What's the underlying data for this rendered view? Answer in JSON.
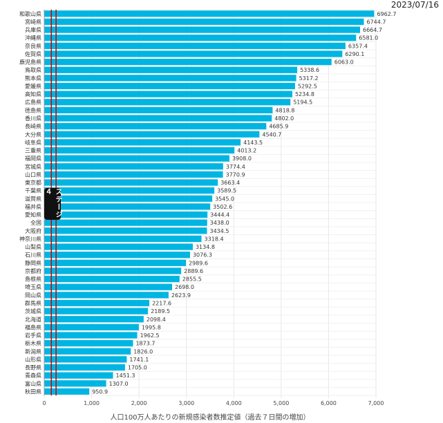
{
  "date": "2023/07/16",
  "chart_data": {
    "type": "bar",
    "orientation": "horizontal",
    "categories": [
      "和歌山県",
      "宮崎県",
      "兵庫県",
      "沖縄県",
      "奈良県",
      "佐賀県",
      "鹿児島県",
      "鳥取県",
      "熊本県",
      "愛媛県",
      "高知県",
      "広島県",
      "徳島県",
      "香川県",
      "長崎県",
      "大分県",
      "岐阜県",
      "三重県",
      "福岡県",
      "宮城県",
      "山口県",
      "東京都",
      "千葉県",
      "滋賀県",
      "福井県",
      "愛知県",
      "全国",
      "大阪府",
      "神奈川県",
      "山梨県",
      "石川県",
      "静岡県",
      "京都府",
      "島根県",
      "埼玉県",
      "岡山県",
      "群馬県",
      "茨城県",
      "北海道",
      "福島県",
      "岩手県",
      "栃木県",
      "新潟県",
      "山形県",
      "長野県",
      "青森県",
      "富山県",
      "秋田県"
    ],
    "values": [
      6962.7,
      6744.7,
      6664.7,
      6581.0,
      6357.4,
      6290.1,
      6063.0,
      5338.6,
      5317.2,
      5292.5,
      5234.8,
      5194.5,
      4818.8,
      4802.0,
      4685.9,
      4540.7,
      4143.5,
      4013.2,
      3908.0,
      3774.4,
      3770.9,
      3663.4,
      3589.5,
      3545.0,
      3502.6,
      3444.4,
      3438.0,
      3434.5,
      3318.4,
      3134.8,
      3076.3,
      2989.6,
      2889.6,
      2855.5,
      2698.0,
      2623.9,
      2217.6,
      2189.5,
      2098.4,
      1995.8,
      1962.5,
      1873.7,
      1826.0,
      1741.1,
      1705.0,
      1451.3,
      1307.0,
      950.9
    ],
    "value_labels": [
      "6962.7",
      "6744.7",
      "6664.7",
      "6581.0",
      "6357.4",
      "6290.1",
      "6063.0",
      "5338.6",
      "5317.2",
      "5292.5",
      "5234.8",
      "5194.5",
      "4818.8",
      "4802.0",
      "4685.9",
      "4540.7",
      "4143.5",
      "4013.2",
      "3908.0",
      "3774.4",
      "3770.9",
      "3663.4",
      "3589.5",
      "3545.0",
      "3502.6",
      "3444.4",
      "3438.0",
      "3434.5",
      "3318.4",
      "3134.8",
      "3076.3",
      "2989.6",
      "2889.6",
      "2855.5",
      "2698.0",
      "2623.9",
      "2217.6",
      "2189.5",
      "2098.4",
      "1995.8",
      "1962.5",
      "1873.7",
      "1826.0",
      "1741.1",
      "1705.0",
      "1451.3",
      "1307.0",
      "950.9"
    ],
    "xlabel": "人口100万人あたりの新規感染者数推定値（過去７日間の増加）",
    "xlim": [
      0,
      7000
    ],
    "xticks": [
      0,
      1000,
      2000,
      3000,
      4000,
      5000,
      6000,
      7000
    ],
    "xtick_labels": [
      "0",
      "1,000",
      "2,000",
      "3,000",
      "4,000",
      "5,000",
      "6,000",
      "7,000"
    ],
    "reference_lines": [
      150,
      250
    ],
    "reference_line_note": "ステージ４",
    "grid": true,
    "colors": {
      "bar": "#00b5e2",
      "reference": "#cc0000",
      "grid": "#e6e6e6"
    }
  }
}
